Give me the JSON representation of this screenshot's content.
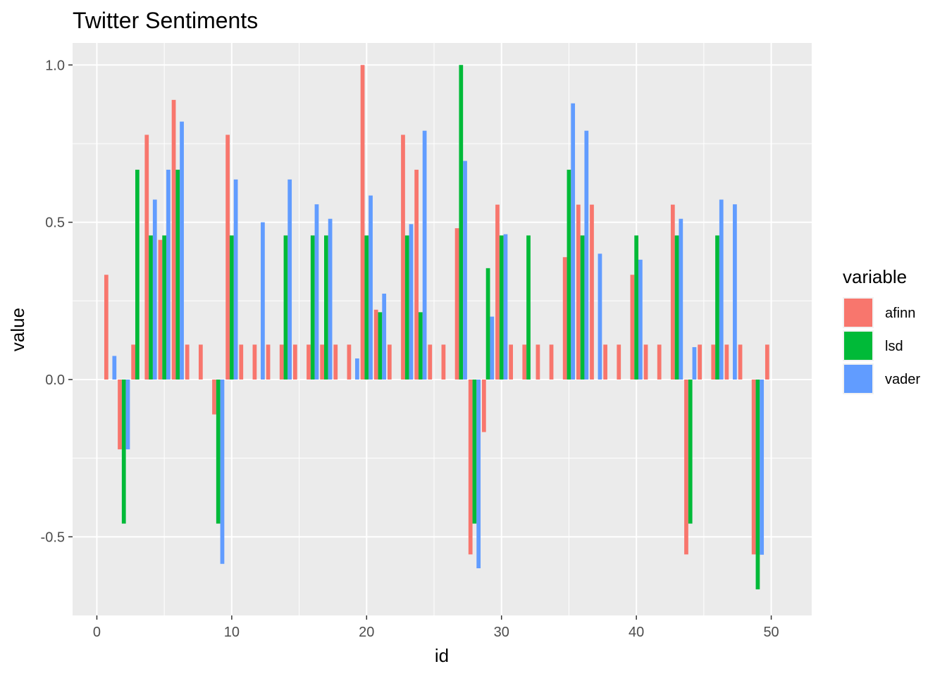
{
  "chart_data": {
    "type": "bar",
    "title": "Twitter Sentiments",
    "xlabel": "id",
    "ylabel": "value",
    "xlim": [
      -1.8,
      53.0
    ],
    "ylim": [
      -0.75,
      1.07
    ],
    "x_ticks": [
      0,
      10,
      20,
      30,
      40,
      50
    ],
    "x_tick_labels": [
      "0",
      "10",
      "20",
      "30",
      "40",
      "50"
    ],
    "y_ticks": [
      -0.5,
      0.0,
      0.5,
      1.0
    ],
    "y_tick_labels": [
      "-0.5",
      "0.0",
      "0.5",
      "1.0"
    ],
    "grid": true,
    "legend": {
      "title": "variable",
      "position": "right"
    },
    "series": [
      {
        "name": "afinn",
        "color": "#F8766D",
        "points": [
          [
            1,
            0.333
          ],
          [
            2,
            -0.222
          ],
          [
            3,
            0.111
          ],
          [
            4,
            0.778
          ],
          [
            5,
            0.444
          ],
          [
            6,
            0.889
          ],
          [
            7,
            0.111
          ],
          [
            8,
            0.111
          ],
          [
            9,
            -0.111
          ],
          [
            10,
            0.778
          ],
          [
            11,
            0.111
          ],
          [
            12,
            0.111
          ],
          [
            13,
            0.111
          ],
          [
            14,
            0.111
          ],
          [
            15,
            0.111
          ],
          [
            16,
            0.111
          ],
          [
            17,
            0.111
          ],
          [
            18,
            0.111
          ],
          [
            19,
            0.111
          ],
          [
            20,
            1.0
          ],
          [
            21,
            0.222
          ],
          [
            22,
            0.111
          ],
          [
            23,
            0.778
          ],
          [
            24,
            0.667
          ],
          [
            25,
            0.111
          ],
          [
            26,
            0.111
          ],
          [
            27,
            0.481
          ],
          [
            28,
            -0.556
          ],
          [
            29,
            -0.167
          ],
          [
            30,
            0.556
          ],
          [
            31,
            0.111
          ],
          [
            32,
            0.111
          ],
          [
            33,
            0.111
          ],
          [
            34,
            0.111
          ],
          [
            35,
            0.389
          ],
          [
            36,
            0.556
          ],
          [
            37,
            0.556
          ],
          [
            38,
            0.111
          ],
          [
            39,
            0.111
          ],
          [
            40,
            0.333
          ],
          [
            41,
            0.111
          ],
          [
            42,
            0.111
          ],
          [
            43,
            0.556
          ],
          [
            44,
            -0.556
          ],
          [
            45,
            0.111
          ],
          [
            46,
            0.111
          ],
          [
            47,
            0.111
          ],
          [
            48,
            0.111
          ],
          [
            49,
            -0.556
          ],
          [
            50,
            0.111
          ]
        ]
      },
      {
        "name": "lsd",
        "color": "#00BA38",
        "points": [
          [
            2,
            -0.458
          ],
          [
            3,
            0.667
          ],
          [
            4,
            0.458
          ],
          [
            5,
            0.458
          ],
          [
            6,
            0.667
          ],
          [
            9,
            -0.458
          ],
          [
            10,
            0.458
          ],
          [
            14,
            0.458
          ],
          [
            16,
            0.458
          ],
          [
            17,
            0.458
          ],
          [
            20,
            0.458
          ],
          [
            21,
            0.214
          ],
          [
            23,
            0.458
          ],
          [
            24,
            0.214
          ],
          [
            27,
            1.0
          ],
          [
            28,
            -0.458
          ],
          [
            29,
            0.354
          ],
          [
            30,
            0.458
          ],
          [
            32,
            0.458
          ],
          [
            35,
            0.667
          ],
          [
            36,
            0.458
          ],
          [
            40,
            0.458
          ],
          [
            43,
            0.458
          ],
          [
            44,
            -0.458
          ],
          [
            46,
            0.458
          ],
          [
            49,
            -0.667
          ]
        ]
      },
      {
        "name": "vader",
        "color": "#619CFF",
        "points": [
          [
            1,
            0.075
          ],
          [
            2,
            -0.222
          ],
          [
            4,
            0.572
          ],
          [
            5,
            0.667
          ],
          [
            6,
            0.82
          ],
          [
            9,
            -0.586
          ],
          [
            10,
            0.636
          ],
          [
            12,
            0.5
          ],
          [
            14,
            0.636
          ],
          [
            16,
            0.557
          ],
          [
            17,
            0.511
          ],
          [
            19,
            0.067
          ],
          [
            20,
            0.585
          ],
          [
            21,
            0.273
          ],
          [
            23,
            0.494
          ],
          [
            24,
            0.791
          ],
          [
            27,
            0.695
          ],
          [
            28,
            -0.6
          ],
          [
            29,
            0.2
          ],
          [
            30,
            0.462
          ],
          [
            35,
            0.878
          ],
          [
            36,
            0.791
          ],
          [
            37,
            0.4
          ],
          [
            40,
            0.381
          ],
          [
            43,
            0.511
          ],
          [
            44,
            0.103
          ],
          [
            46,
            0.572
          ],
          [
            47,
            0.557
          ],
          [
            49,
            -0.557
          ]
        ]
      }
    ]
  }
}
